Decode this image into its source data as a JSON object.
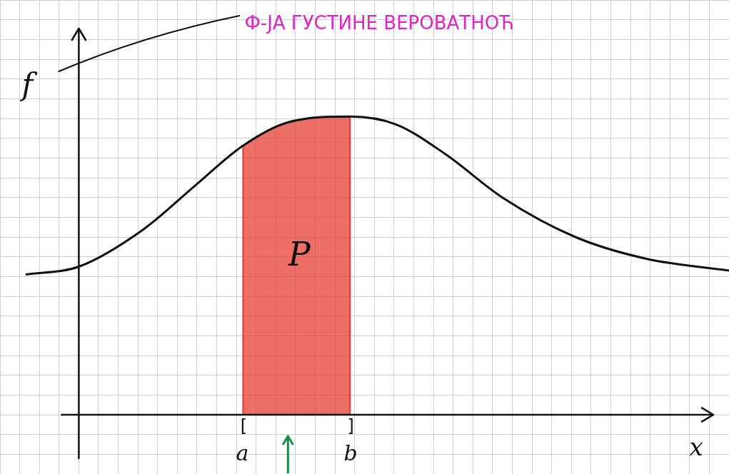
{
  "chart_data": {
    "type": "line",
    "title": "Ф-ЈА ГУСТИНЕ ВЕРОВАТНОЋ",
    "x_label": "x",
    "y_label": "f",
    "x": [
      -2.7,
      0,
      3.3,
      5.9,
      8.3,
      10.6,
      13.8,
      16.1,
      18.6,
      21.5,
      25.2,
      28.8,
      33
    ],
    "values": [
      7.1,
      7.5,
      9.4,
      11.6,
      13.6,
      14.8,
      15.1,
      14.7,
      13.2,
      11.0,
      9.0,
      7.9,
      7.3
    ],
    "color": "#111111",
    "xlim": [
      -4,
      33
    ],
    "ylim": [
      -3,
      21
    ],
    "xticks": [
      -4,
      -3,
      -2,
      -1,
      0,
      1,
      2,
      3,
      4,
      5,
      6,
      7,
      8,
      9,
      10,
      11,
      12,
      13,
      14,
      15,
      16,
      17,
      18,
      19,
      20,
      21,
      22,
      23,
      24,
      25,
      26,
      27,
      28,
      29,
      30,
      31,
      32,
      33
    ],
    "yticks": [
      -3,
      -2,
      -1,
      0,
      1,
      2,
      3,
      4,
      5,
      6,
      7,
      8,
      9,
      10,
      11,
      12,
      13,
      14,
      15,
      16,
      17,
      18,
      19,
      20,
      21
    ],
    "grid": true,
    "tick_labels": false,
    "shaded_interval": {
      "start": 8.3,
      "end": 13.8,
      "start_label": "a",
      "end_label": "b",
      "open": "[",
      "close": "]",
      "label": "P",
      "color": "#e8372c"
    }
  }
}
